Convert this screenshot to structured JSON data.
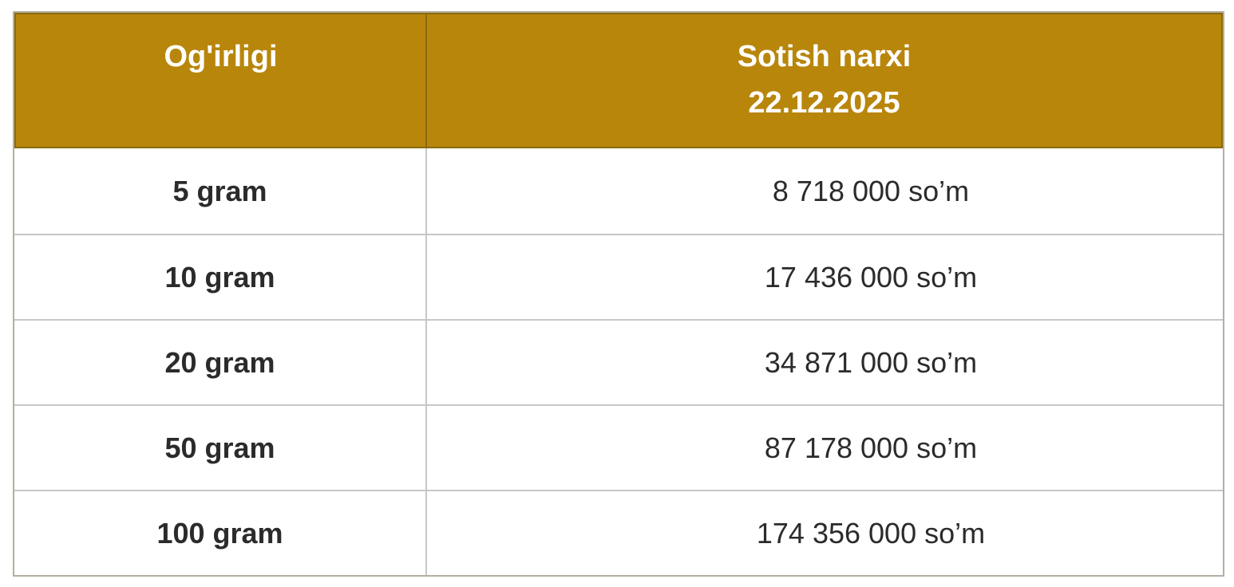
{
  "table": {
    "header": {
      "weight_label": "Og'irligi",
      "price_label": "Sotish narxi",
      "price_date": "22.12.2025"
    },
    "rows": [
      {
        "weight": "5 gram",
        "price": "8 718 000 so’m"
      },
      {
        "weight": "10 gram",
        "price": "17 436 000 so’m"
      },
      {
        "weight": "20 gram",
        "price": "34 871 000 so’m"
      },
      {
        "weight": "50 gram",
        "price": "87 178 000 so’m"
      },
      {
        "weight": "100 gram",
        "price": "174 356 000 so’m"
      }
    ],
    "colors": {
      "header_background": "#b8860b",
      "header_border": "#8a6a10",
      "header_text": "#ffffff",
      "outer_border": "#b5aea2",
      "row_border": "#c7c7c7",
      "body_text": "#2b2b2b"
    }
  }
}
